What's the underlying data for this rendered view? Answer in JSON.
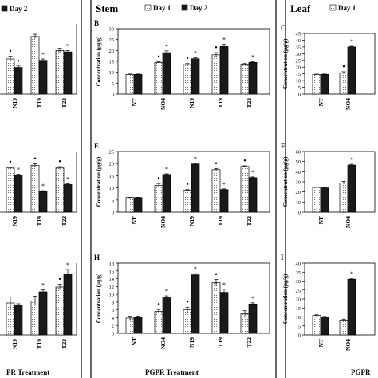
{
  "figure": {
    "section_labels": [
      "Stem",
      "Leaf"
    ],
    "legend_entries": [
      "Day 1",
      "Day 2"
    ],
    "xlabels": [
      "PR Treatment",
      "PGPR Treatment",
      "PGPR"
    ],
    "ylabel": "Concentration (µg/g)",
    "colors": {
      "day1": "#ffffff",
      "day2": "#1a1a1a",
      "frame": "#000000"
    }
  },
  "chart_data": [
    {
      "panel": "A (root, partial)",
      "type": "bar",
      "categories": [
        "N19",
        "T19",
        "T22"
      ],
      "series": [
        {
          "name": "Day 1",
          "values": [
            12.5,
            20.5,
            15.5
          ],
          "errors": [
            1.0,
            0.8,
            0.8
          ]
        },
        {
          "name": "Day 2",
          "values": [
            9.5,
            12.0,
            15.0
          ],
          "errors": [
            0.5,
            0.5,
            0.5
          ]
        }
      ],
      "markers": [
        [
          "•",
          "",
          ""
        ],
        [
          "•",
          "*",
          "*"
        ]
      ],
      "legend": "top"
    },
    {
      "panel": "B",
      "type": "bar",
      "letter": "B",
      "categories": [
        "NT",
        "NO4",
        "N19",
        "T19",
        "T22"
      ],
      "series": [
        {
          "name": "Day 1",
          "values": [
            9,
            14.5,
            13.5,
            18,
            13.7
          ],
          "errors": [
            0.2,
            0.3,
            0.5,
            1.0,
            0.3
          ]
        },
        {
          "name": "Day 2",
          "values": [
            9,
            19,
            16.2,
            21.8,
            14.5
          ],
          "errors": [
            0.2,
            0.8,
            0.5,
            1.0,
            0.4
          ]
        }
      ],
      "markers": [
        [
          "",
          "•",
          "•",
          "•",
          ""
        ],
        [
          "",
          "*",
          "*",
          "*",
          "*"
        ]
      ],
      "ylim": [
        0,
        30
      ],
      "yticks": [
        "0",
        "5",
        "10",
        "15",
        "20",
        "25",
        "30"
      ],
      "legend": "top"
    },
    {
      "panel": "C",
      "type": "bar",
      "letter": "C",
      "categories": [
        "NT",
        "NO4"
      ],
      "series": [
        {
          "name": "Day 1",
          "values": [
            14.5,
            15.8
          ],
          "errors": [
            0.3,
            0.8
          ]
        },
        {
          "name": "Day 2",
          "values": [
            14.6,
            35
          ],
          "errors": [
            0.3,
            0.5
          ]
        }
      ],
      "markers": [
        [
          "",
          "•"
        ],
        [
          "",
          "*"
        ]
      ],
      "ylim": [
        0,
        45
      ],
      "yticks": [
        "0",
        "5",
        "10",
        "15",
        "20",
        "25",
        "30",
        "35",
        "40",
        "45"
      ],
      "legend": "top"
    },
    {
      "panel": "D (root, partial)",
      "type": "bar",
      "categories": [
        "N19",
        "T19",
        "T22"
      ],
      "series": [
        {
          "name": "Day 1",
          "values": [
            16,
            17,
            16
          ],
          "errors": [
            0.4,
            0.5,
            0.5
          ]
        },
        {
          "name": "Day 2",
          "values": [
            13.5,
            7.5,
            10.0
          ],
          "errors": [
            0.3,
            0.3,
            0.3
          ]
        }
      ],
      "markers": [
        [
          "•",
          "•",
          "•"
        ],
        [
          "*",
          "*",
          "*"
        ]
      ]
    },
    {
      "panel": "E",
      "type": "bar",
      "letter": "E",
      "categories": [
        "NT",
        "NO4",
        "N19",
        "T19",
        "T22"
      ],
      "series": [
        {
          "name": "Day 1",
          "values": [
            6,
            11,
            9,
            17.5,
            18.8
          ],
          "errors": [
            0.1,
            0.8,
            0.3,
            0.5,
            0.3
          ]
        },
        {
          "name": "Day 2",
          "values": [
            6,
            15.5,
            19.8,
            9.3,
            14.2
          ],
          "errors": [
            0.1,
            0.3,
            0.3,
            0.3,
            0.3
          ]
        }
      ],
      "markers": [
        [
          "",
          "•",
          "•",
          "•",
          "•"
        ],
        [
          "",
          "*",
          "*",
          "*",
          "*"
        ]
      ],
      "ylim": [
        0,
        25
      ],
      "yticks": [
        "0",
        "5",
        "10",
        "15",
        "20",
        "25"
      ]
    },
    {
      "panel": "F",
      "type": "bar",
      "letter": "F",
      "categories": [
        "NT",
        "NO4"
      ],
      "series": [
        {
          "name": "Day 1",
          "values": [
            24.5,
            29
          ],
          "errors": [
            0.5,
            1.5
          ]
        },
        {
          "name": "Day 2",
          "values": [
            24,
            46.5
          ],
          "errors": [
            0.5,
            0.8
          ]
        }
      ],
      "markers": [
        [
          "",
          ""
        ],
        [
          "",
          "*"
        ]
      ],
      "ylim": [
        0,
        60
      ],
      "yticks": [
        "0",
        "10",
        "20",
        "30",
        "40",
        "50",
        "60"
      ]
    },
    {
      "panel": "G (root, partial)",
      "type": "bar",
      "categories": [
        "N19",
        "T19",
        "T22"
      ],
      "series": [
        {
          "name": "Day 1",
          "values": [
            8.0,
            8.5,
            12.0
          ],
          "errors": [
            1.5,
            1.2,
            0.7
          ]
        },
        {
          "name": "Day 2",
          "values": [
            7.5,
            10.8,
            15.2
          ],
          "errors": [
            0.3,
            0.5,
            1.2
          ]
        }
      ],
      "markers": [
        [
          "",
          "",
          "•"
        ],
        [
          "",
          "*",
          "*"
        ]
      ]
    },
    {
      "panel": "H",
      "type": "bar",
      "letter": "H",
      "categories": [
        "NT",
        "NO4",
        "N19",
        "T19",
        "T22"
      ],
      "series": [
        {
          "name": "Day 1",
          "values": [
            3.9,
            5.6,
            6.0,
            13.0,
            5.0
          ],
          "errors": [
            0.5,
            0.5,
            0.7,
            0.8,
            0.8
          ]
        },
        {
          "name": "Day 2",
          "values": [
            4.1,
            9.1,
            15.0,
            10.5,
            7.5
          ],
          "errors": [
            0.3,
            0.5,
            0.3,
            0.8,
            0.3
          ]
        }
      ],
      "markers": [
        [
          "",
          "•",
          "•",
          "•",
          ""
        ],
        [
          "",
          "*",
          "*",
          "*",
          "*"
        ]
      ],
      "ylim": [
        0,
        18
      ],
      "yticks": [
        "0",
        "2",
        "4",
        "6",
        "8",
        "10",
        "12",
        "14",
        "16",
        "18"
      ]
    },
    {
      "panel": "I",
      "type": "bar",
      "letter": "I",
      "categories": [
        "NT",
        "NO4"
      ],
      "series": [
        {
          "name": "Day 1",
          "values": [
            10.8,
            8.3
          ],
          "errors": [
            0.4,
            0.5
          ]
        },
        {
          "name": "Day 2",
          "values": [
            10.0,
            31.0
          ],
          "errors": [
            0.3,
            0.5
          ]
        }
      ],
      "markers": [
        [
          "",
          ""
        ],
        [
          "",
          "*"
        ]
      ],
      "ylim": [
        0,
        40
      ],
      "yticks": [
        "0",
        "5",
        "10",
        "15",
        "20",
        "25",
        "30",
        "35",
        "40"
      ]
    }
  ]
}
